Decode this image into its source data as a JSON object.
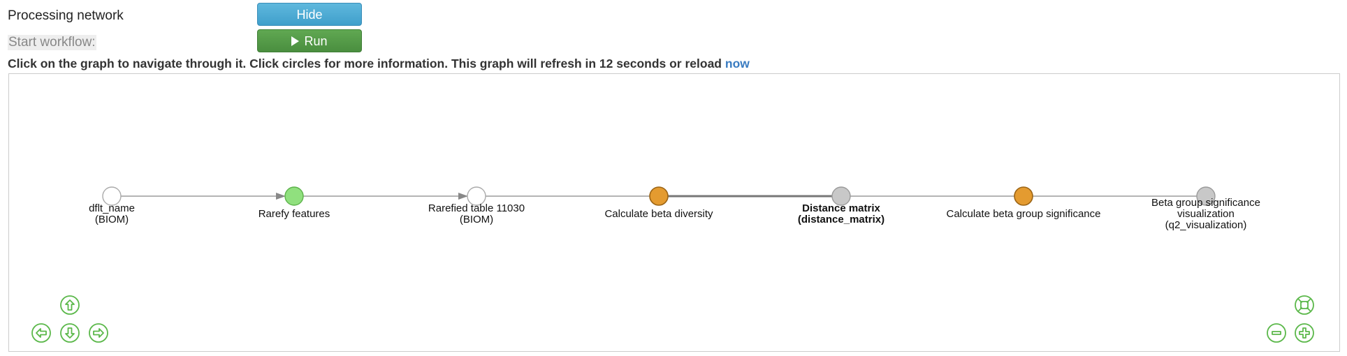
{
  "header": {
    "processing_label": "Processing network",
    "hide_label": "Hide",
    "start_workflow_label": "Start workflow:",
    "run_label": "Run"
  },
  "instructions": {
    "text": "Click on the graph to navigate through it. Click circles for more information. This graph will refresh in 12 seconds or reload",
    "reload_link": "now"
  },
  "graph": {
    "colors": {
      "artifact": "#ffffff",
      "completed": "#90e07e",
      "job": "#e49b30",
      "pending_artifact": "#c8c8c8",
      "edge": "#888888",
      "controls": "#5bb84a"
    },
    "nodes": [
      {
        "id": "dflt-name",
        "kind": "artifact",
        "lines": [
          "dflt_name",
          "(BIOM)"
        ],
        "bold": false
      },
      {
        "id": "rarefy-features",
        "kind": "completed",
        "lines": [
          "Rarefy features"
        ],
        "bold": false
      },
      {
        "id": "rarefied-table",
        "kind": "artifact",
        "lines": [
          "Rarefied table 11030",
          "(BIOM)"
        ],
        "bold": false
      },
      {
        "id": "calculate-beta-diversity",
        "kind": "job",
        "lines": [
          "Calculate beta diversity"
        ],
        "bold": false
      },
      {
        "id": "distance-matrix",
        "kind": "pending_artifact",
        "lines": [
          "Distance matrix",
          "(distance_matrix)"
        ],
        "bold": true
      },
      {
        "id": "calculate-beta-group-significance",
        "kind": "job",
        "lines": [
          "Calculate beta group significance"
        ],
        "bold": false
      },
      {
        "id": "beta-group-significance-visualization",
        "kind": "pending_artifact",
        "lines": [
          "Beta group significance",
          "visualization",
          "(q2_visualization)"
        ],
        "bold": false
      }
    ],
    "edges": [
      {
        "from": 0,
        "to": 1,
        "arrow": true,
        "thick": false
      },
      {
        "from": 1,
        "to": 2,
        "arrow": true,
        "thick": false
      },
      {
        "from": 2,
        "to": 3,
        "arrow": false,
        "thick": false
      },
      {
        "from": 3,
        "to": 4,
        "arrow": false,
        "thick": true
      },
      {
        "from": 4,
        "to": 5,
        "arrow": false,
        "thick": false
      },
      {
        "from": 5,
        "to": 6,
        "arrow": false,
        "thick": false
      }
    ],
    "controls": [
      {
        "id": "nav-up",
        "icon": "arrow-up-icon"
      },
      {
        "id": "nav-left",
        "icon": "arrow-left-icon"
      },
      {
        "id": "nav-down",
        "icon": "arrow-down-icon"
      },
      {
        "id": "nav-right",
        "icon": "arrow-right-icon"
      },
      {
        "id": "zoom-fit",
        "icon": "zoom-extends-icon"
      },
      {
        "id": "zoom-out",
        "icon": "minus-icon"
      },
      {
        "id": "zoom-in",
        "icon": "plus-icon"
      }
    ]
  }
}
